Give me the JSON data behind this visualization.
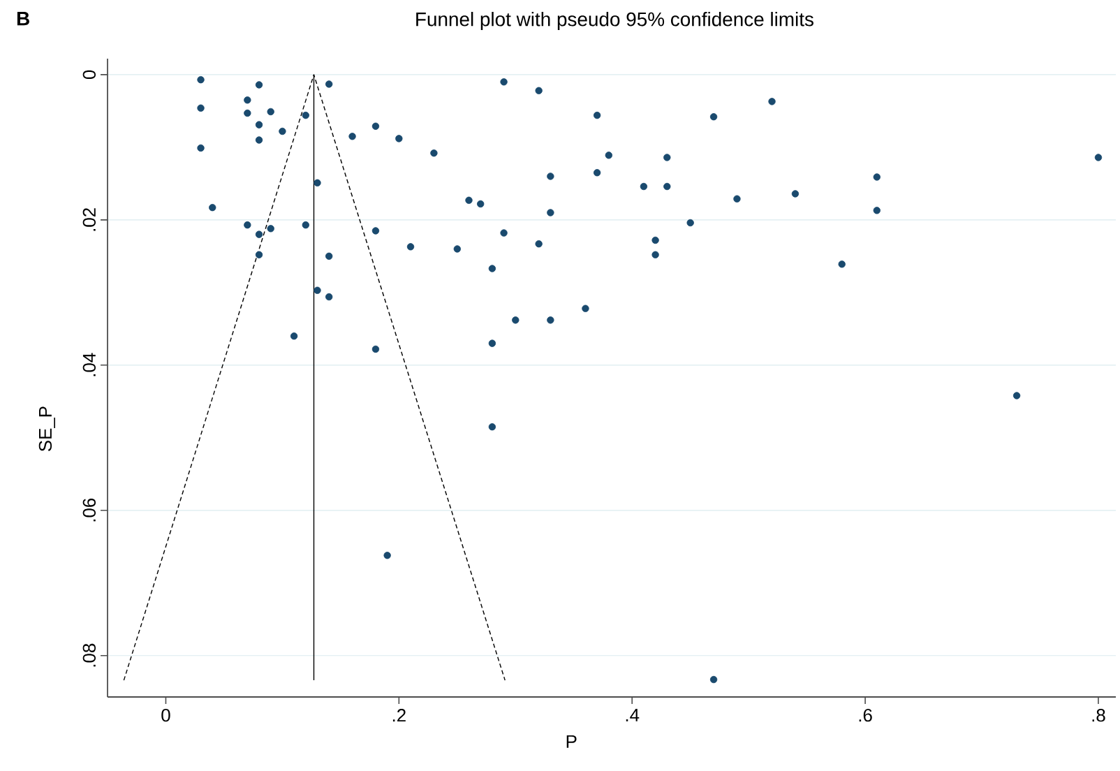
{
  "chart_data": {
    "type": "scatter",
    "title": "Funnel plot with pseudo 95% confidence limits",
    "xlabel": "P",
    "ylabel": "SE_P",
    "annotations": [
      "B"
    ],
    "xlim": [
      -0.05,
      0.815
    ],
    "ylim": [
      0.0857,
      -0.0022
    ],
    "xticks": [
      0,
      {
        "value": 0.2,
        "label": ".2"
      },
      {
        "value": 0.4,
        "label": ".4"
      },
      {
        "value": 0.6,
        "label": ".6"
      },
      {
        "value": 0.8,
        "label": ".8"
      }
    ],
    "yticks": [
      0,
      {
        "value": 0.02,
        "label": ".02"
      },
      {
        "value": 0.04,
        "label": ".04"
      },
      {
        "value": 0.06,
        "label": ".06"
      },
      {
        "value": 0.08,
        "label": ".08"
      }
    ],
    "grid": "y",
    "series": [
      {
        "type": "scatter",
        "marker": "circle",
        "color": "#1a4a6e",
        "x": [
          0.03,
          0.08,
          0.14,
          0.29,
          0.32,
          0.03,
          0.07,
          0.07,
          0.09,
          0.12,
          0.08,
          0.1,
          0.08,
          0.16,
          0.18,
          0.2,
          0.23,
          0.03,
          0.33,
          0.04,
          0.13,
          0.26,
          0.27,
          0.33,
          0.07,
          0.09,
          0.08,
          0.12,
          0.18,
          0.29,
          0.21,
          0.25,
          0.32,
          0.08,
          0.14,
          0.28,
          0.13,
          0.14,
          0.3,
          0.33,
          0.11,
          0.28,
          0.18,
          0.37,
          0.47,
          0.52,
          0.38,
          0.43,
          0.8,
          0.37,
          0.41,
          0.43,
          0.61,
          0.49,
          0.54,
          0.61,
          0.45,
          0.42,
          0.42,
          0.58,
          0.36,
          0.28,
          0.19,
          0.73,
          0.47
        ],
        "values": [
          0.0007,
          0.0014,
          0.0013,
          0.001,
          0.0022,
          0.0046,
          0.0035,
          0.0053,
          0.0051,
          0.0056,
          0.0069,
          0.0078,
          0.009,
          0.0085,
          0.0071,
          0.0088,
          0.0108,
          0.0101,
          0.014,
          0.0183,
          0.0149,
          0.0173,
          0.0178,
          0.019,
          0.0207,
          0.0212,
          0.022,
          0.0207,
          0.0215,
          0.0218,
          0.0237,
          0.024,
          0.0233,
          0.0248,
          0.025,
          0.0267,
          0.0297,
          0.0306,
          0.0338,
          0.0338,
          0.036,
          0.037,
          0.0378,
          0.0056,
          0.0058,
          0.0037,
          0.0111,
          0.0114,
          0.0114,
          0.0135,
          0.0154,
          0.0154,
          0.0141,
          0.0171,
          0.0164,
          0.0187,
          0.0204,
          0.0228,
          0.0248,
          0.0261,
          0.0322,
          0.0485,
          0.0662,
          0.0442,
          0.0833
        ]
      },
      {
        "type": "line",
        "color": "#000000",
        "line_style": "dashed",
        "marker": "none",
        "x": [
          -0.036,
          0.127,
          0.291
        ],
        "values": [
          0.0834,
          0,
          0.0834
        ]
      },
      {
        "type": "line",
        "color": "#000000",
        "line_style": "solid",
        "marker": "none",
        "x": [
          0.127,
          0.127
        ],
        "values": [
          0,
          0.0834
        ]
      }
    ]
  }
}
